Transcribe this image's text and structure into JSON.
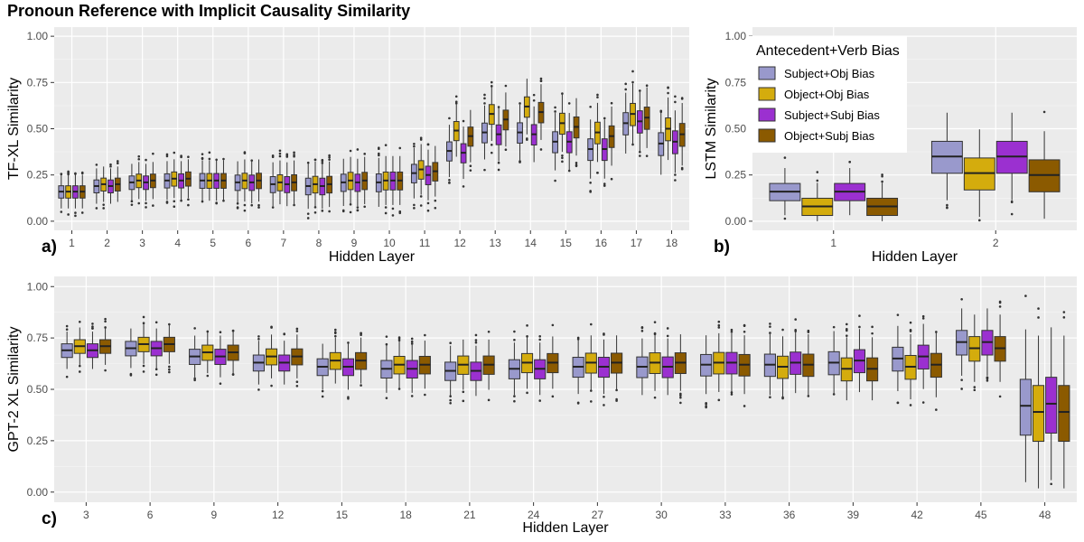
{
  "title": "Pronoun Reference with Implicit Causality Similarity",
  "legend": {
    "title": "Antecedent+Verb Bias",
    "entries": [
      {
        "label": "Subject+Obj Bias",
        "color": "#9999CC"
      },
      {
        "label": "Object+Obj Bias",
        "color": "#D4AC0D"
      },
      {
        "label": "Subject+Subj Bias",
        "color": "#9B30D0"
      },
      {
        "label": "Object+Subj Bias",
        "color": "#8B5A00"
      }
    ]
  },
  "chart_data": [
    {
      "type": "box",
      "panel": "a)",
      "xlabel": "Hidden Layer",
      "ylabel": "TF-XL Similarity",
      "ylim": [
        0,
        1
      ],
      "yticks": [
        "0.00",
        "0.25",
        "0.50",
        "0.75",
        "1.00"
      ],
      "categories": [
        "1",
        "2",
        "3",
        "4",
        "5",
        "6",
        "7",
        "8",
        "9",
        "10",
        "11",
        "12",
        "13",
        "14",
        "15",
        "16",
        "17",
        "18"
      ],
      "series": [
        {
          "name": "Subject+Obj Bias",
          "medians": [
            0.16,
            0.19,
            0.21,
            0.22,
            0.22,
            0.21,
            0.2,
            0.19,
            0.21,
            0.21,
            0.26,
            0.38,
            0.48,
            0.48,
            0.43,
            0.39,
            0.53,
            0.42
          ]
        },
        {
          "name": "Object+Obj Bias",
          "medians": [
            0.16,
            0.2,
            0.22,
            0.23,
            0.22,
            0.22,
            0.21,
            0.2,
            0.22,
            0.22,
            0.28,
            0.49,
            0.58,
            0.62,
            0.53,
            0.48,
            0.58,
            0.5
          ]
        },
        {
          "name": "Subject+Subj Bias",
          "medians": [
            0.16,
            0.19,
            0.21,
            0.22,
            0.22,
            0.21,
            0.2,
            0.19,
            0.21,
            0.22,
            0.25,
            0.37,
            0.47,
            0.47,
            0.43,
            0.39,
            0.54,
            0.43
          ]
        },
        {
          "name": "Object+Subj Bias",
          "medians": [
            0.16,
            0.2,
            0.22,
            0.23,
            0.22,
            0.22,
            0.21,
            0.2,
            0.22,
            0.22,
            0.27,
            0.46,
            0.55,
            0.59,
            0.51,
            0.46,
            0.56,
            0.47
          ]
        }
      ]
    },
    {
      "type": "box",
      "panel": "b)",
      "xlabel": "Hidden Layer",
      "ylabel": "LSTM Similarity",
      "ylim": [
        0,
        1
      ],
      "yticks": [
        "0.00",
        "0.25",
        "0.50",
        "0.75",
        "1.00"
      ],
      "categories": [
        "1",
        "2"
      ],
      "series": [
        {
          "name": "Subject+Obj Bias",
          "medians": [
            0.16,
            0.35
          ]
        },
        {
          "name": "Object+Obj Bias",
          "medians": [
            0.08,
            0.26
          ]
        },
        {
          "name": "Subject+Subj Bias",
          "medians": [
            0.16,
            0.35
          ]
        },
        {
          "name": "Object+Subj Bias",
          "medians": [
            0.08,
            0.25
          ]
        }
      ]
    },
    {
      "type": "box",
      "panel": "c)",
      "xlabel": "Hidden Layer",
      "ylabel": "GPT-2 XL Similarity",
      "ylim": [
        0,
        1
      ],
      "yticks": [
        "0.00",
        "0.25",
        "0.50",
        "0.75",
        "1.00"
      ],
      "categories": [
        "3",
        "6",
        "9",
        "12",
        "15",
        "18",
        "21",
        "24",
        "27",
        "30",
        "33",
        "36",
        "39",
        "42",
        "45",
        "48"
      ],
      "series": [
        {
          "name": "Subject+Obj Bias",
          "medians": [
            0.69,
            0.7,
            0.66,
            0.63,
            0.61,
            0.6,
            0.59,
            0.6,
            0.61,
            0.61,
            0.62,
            0.62,
            0.63,
            0.65,
            0.73,
            0.42
          ]
        },
        {
          "name": "Object+Obj Bias",
          "medians": [
            0.71,
            0.72,
            0.68,
            0.66,
            0.64,
            0.62,
            0.62,
            0.63,
            0.63,
            0.63,
            0.63,
            0.61,
            0.6,
            0.61,
            0.7,
            0.39
          ]
        },
        {
          "name": "Subject+Subj Bias",
          "medians": [
            0.69,
            0.7,
            0.66,
            0.63,
            0.61,
            0.6,
            0.59,
            0.6,
            0.61,
            0.61,
            0.63,
            0.63,
            0.64,
            0.66,
            0.73,
            0.43
          ]
        },
        {
          "name": "Object+Subj Bias",
          "medians": [
            0.71,
            0.72,
            0.68,
            0.66,
            0.64,
            0.62,
            0.62,
            0.63,
            0.63,
            0.63,
            0.62,
            0.62,
            0.6,
            0.62,
            0.7,
            0.39
          ]
        }
      ]
    }
  ]
}
